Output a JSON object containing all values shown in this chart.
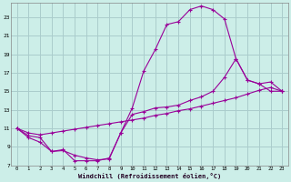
{
  "xlabel": "Windchill (Refroidissement éolien,°C)",
  "bg_color": "#cceee8",
  "grid_color": "#aacccc",
  "line_color": "#990099",
  "xlim": [
    -0.5,
    23.5
  ],
  "ylim": [
    7,
    24.5
  ],
  "xticks": [
    0,
    1,
    2,
    3,
    4,
    5,
    6,
    7,
    8,
    9,
    10,
    11,
    12,
    13,
    14,
    15,
    16,
    17,
    18,
    19,
    20,
    21,
    22,
    23
  ],
  "yticks": [
    7,
    9,
    11,
    13,
    15,
    17,
    19,
    21,
    23
  ],
  "line1_x": [
    0,
    1,
    2,
    3,
    4,
    5,
    6,
    7,
    8,
    9,
    10,
    11,
    12,
    13,
    14,
    15,
    16,
    17,
    18,
    19,
    20,
    21,
    22,
    23
  ],
  "line1_y": [
    11.0,
    10.2,
    10.0,
    8.5,
    8.6,
    8.1,
    7.8,
    7.6,
    7.7,
    10.5,
    13.2,
    17.2,
    19.5,
    22.2,
    22.5,
    23.8,
    24.2,
    23.8,
    22.8,
    18.5,
    16.2,
    15.8,
    15.0,
    15.0
  ],
  "line2_x": [
    0,
    1,
    2,
    3,
    4,
    5,
    6,
    7,
    8,
    9,
    10,
    11,
    12,
    13,
    14,
    15,
    16,
    17,
    18,
    19,
    20,
    21,
    22,
    23
  ],
  "line2_y": [
    11.0,
    10.5,
    10.3,
    10.5,
    10.7,
    10.9,
    11.1,
    11.3,
    11.5,
    11.7,
    11.9,
    12.1,
    12.4,
    12.6,
    12.9,
    13.1,
    13.4,
    13.7,
    14.0,
    14.3,
    14.7,
    15.1,
    15.4,
    15.0
  ],
  "line3_x": [
    0,
    1,
    2,
    3,
    4,
    5,
    6,
    7,
    8,
    9,
    10,
    11,
    12,
    13,
    14,
    15,
    16,
    17,
    18,
    19,
    20,
    21,
    22,
    23
  ],
  "line3_y": [
    11.0,
    10.0,
    9.5,
    8.5,
    8.7,
    7.5,
    7.5,
    7.5,
    7.8,
    10.5,
    12.5,
    12.8,
    13.2,
    13.3,
    13.5,
    14.0,
    14.4,
    15.0,
    16.5,
    18.5,
    16.2,
    15.8,
    16.0,
    15.0
  ]
}
